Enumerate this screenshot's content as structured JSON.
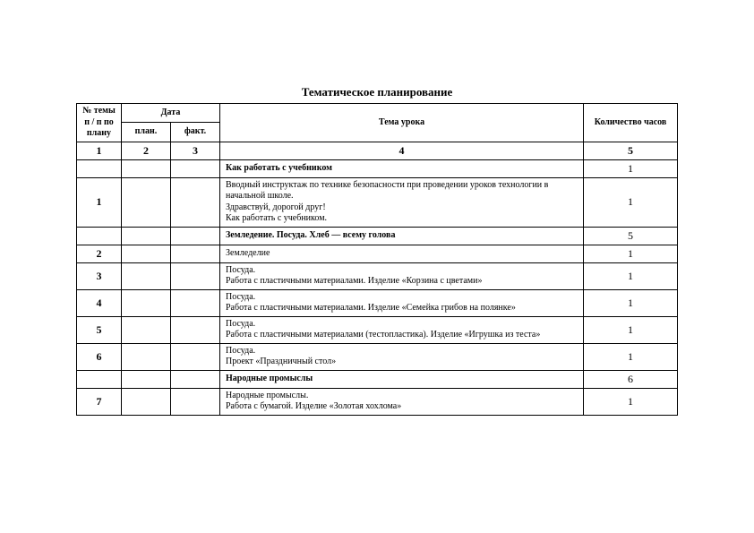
{
  "title": "Тематическое планирование",
  "headers": {
    "num": "№ темы п / п по плану",
    "date": "Дата",
    "plan": "план.",
    "fakt": "факт.",
    "tema": "Тема урока",
    "hours": "Количество часов"
  },
  "colnums": [
    "1",
    "2",
    "3",
    "4",
    "5"
  ],
  "rows": [
    {
      "type": "section",
      "num": "",
      "tema": "Как работать с учебником",
      "hours": "1"
    },
    {
      "type": "lesson",
      "num": "1",
      "tema": "Вводный инструктаж по технике безопасности  при проведении уроков технологии в начальной школе.\nЗдравствуй, дорогой друг!\nКак работать с учебником.",
      "hours": "1"
    },
    {
      "type": "section",
      "num": "",
      "tema": "Земледение. Посуда. Хлеб — всему голова",
      "hours": "5"
    },
    {
      "type": "lesson",
      "num": "2",
      "tema": "Земледелие",
      "hours": "1"
    },
    {
      "type": "lesson",
      "num": "3",
      "tema": "Посуда.\nРабота с пластичными материалами. Изделие «Корзина с цветами»",
      "hours": "1"
    },
    {
      "type": "lesson",
      "num": "4",
      "tema": "Посуда.\nРабота с пластичными материалами. Изделие «Семейка грибов на полянке»",
      "hours": "1"
    },
    {
      "type": "lesson",
      "num": "5",
      "tema": "Посуда.\nРабота с пластичными материалами (тестопластика). Изделие «Игрушка из теста»",
      "hours": "1"
    },
    {
      "type": "lesson",
      "num": "6",
      "tema": "Посуда.\nПроект «Праздничный стол»",
      "hours": "1"
    },
    {
      "type": "section",
      "num": "",
      "tema": "Народные промыслы",
      "hours": "6"
    },
    {
      "type": "lesson",
      "num": "7",
      "tema": "Народные промыслы.\n Работа с бумагой. Изделие «Золотая хохлома»",
      "hours": "1"
    }
  ],
  "style": {
    "font_family": "Times New Roman",
    "title_fontsize": 13,
    "cell_fontsize": 10,
    "border_color": "#000000",
    "background": "#ffffff",
    "text_color": "#000000",
    "col_widths": {
      "num": 50,
      "plan": 55,
      "fakt": 55,
      "hours": 105
    }
  }
}
